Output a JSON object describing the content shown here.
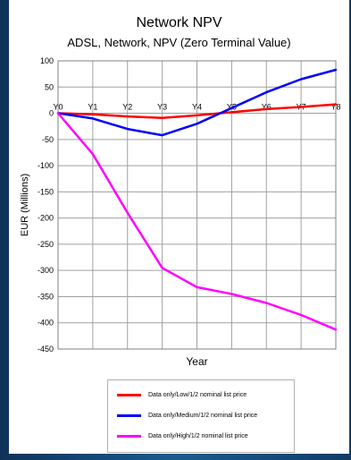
{
  "chart_data": {
    "type": "line",
    "title": "Network NPV",
    "subtitle": "ADSL, Network, NPV (Zero Terminal Value)",
    "xlabel": "Year",
    "ylabel": "EUR (Millions)",
    "categories": [
      "Y0",
      "Y1",
      "Y2",
      "Y3",
      "Y4",
      "Y5",
      "Y6",
      "Y7",
      "Y8"
    ],
    "ylim": [
      -450,
      100
    ],
    "yticks": [
      100,
      50,
      0,
      -50,
      -100,
      -150,
      -200,
      -250,
      -300,
      -350,
      -400,
      -450
    ],
    "grid": true,
    "legend_position": "bottom",
    "series": [
      {
        "name": "Data only/Low/1/2 nominal list price",
        "color": "#ff0000",
        "values": [
          0,
          -2,
          -6,
          -9,
          -4,
          2,
          8,
          12,
          17
        ]
      },
      {
        "name": "Data only/Medium/1/2 nominal list price",
        "color": "#0000ff",
        "values": [
          0,
          -10,
          -30,
          -42,
          -20,
          10,
          40,
          65,
          83
        ]
      },
      {
        "name": "Data only/High/1/2 nominal list price",
        "color": "#ff00ff",
        "values": [
          0,
          -78,
          -190,
          -295,
          -332,
          -345,
          -362,
          -385,
          -413
        ]
      }
    ]
  }
}
